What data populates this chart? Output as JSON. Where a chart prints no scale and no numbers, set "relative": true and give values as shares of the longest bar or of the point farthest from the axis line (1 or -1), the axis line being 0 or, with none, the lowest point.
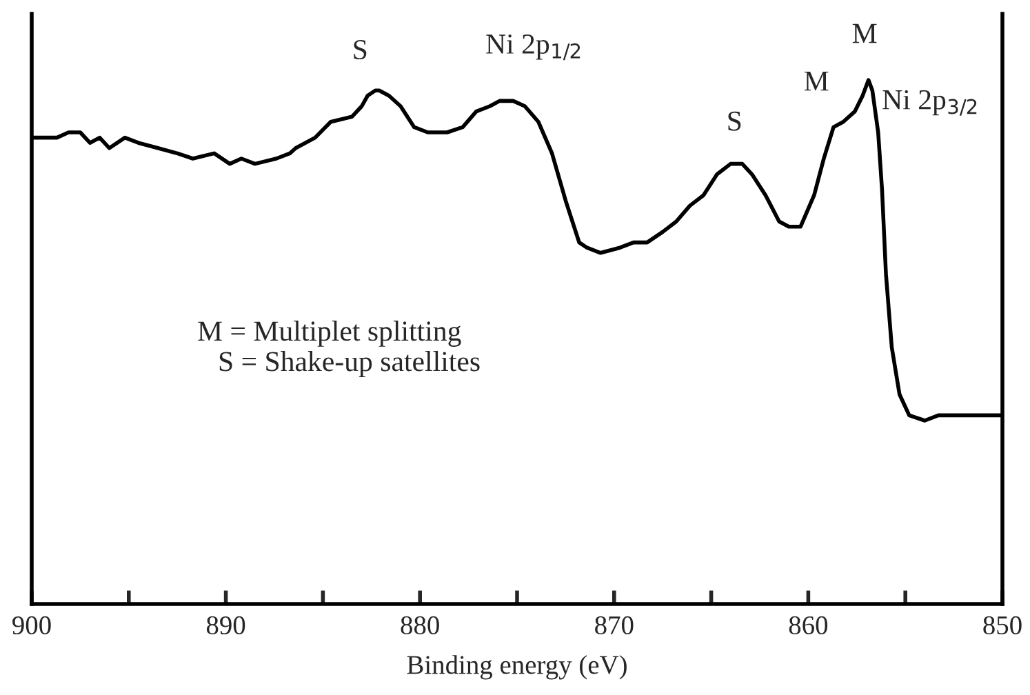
{
  "chart_data": {
    "type": "line",
    "relative": true,
    "xlabel": "Binding energy (eV)",
    "xlim": [
      900,
      850
    ],
    "xticks": [
      900,
      {
        "value": 895,
        "label": null
      },
      890,
      {
        "value": 885,
        "label": null
      },
      880,
      {
        "value": 875,
        "label": null
      },
      870,
      {
        "value": 865,
        "label": null
      },
      860,
      {
        "value": 855,
        "label": null
      },
      850
    ],
    "tick_labels": "x",
    "grid": false,
    "legend": false,
    "marker": "none",
    "line_style": "solid",
    "series": [
      {
        "color": "#000000",
        "x": [
          900.0,
          899.5,
          898.7,
          898.1,
          897.5,
          897.0,
          896.5,
          896.0,
          895.2,
          894.5,
          893.5,
          892.5,
          891.7,
          890.6,
          889.8,
          889.2,
          888.5,
          887.4,
          886.7,
          886.4,
          885.4,
          884.6,
          883.5,
          883.0,
          882.7,
          882.3,
          882.1,
          881.6,
          881.0,
          880.3,
          879.6,
          878.6,
          877.8,
          877.1,
          876.4,
          875.9,
          875.2,
          874.6,
          873.9,
          873.2,
          872.5,
          871.8,
          871.4,
          870.7,
          869.7,
          869.0,
          868.3,
          867.5,
          866.8,
          866.1,
          865.4,
          864.7,
          864.0,
          863.4,
          862.9,
          862.2,
          861.5,
          861.0,
          860.4,
          859.7,
          859.2,
          858.7,
          858.2,
          857.6,
          857.2,
          857.0,
          856.9,
          856.7,
          856.4,
          856.2,
          856.0,
          855.7,
          855.3,
          854.8,
          854.0,
          853.3,
          852.6,
          851.9,
          850.9,
          850.1
        ],
        "values": [
          0.89,
          0.89,
          0.89,
          0.9,
          0.9,
          0.88,
          0.89,
          0.87,
          0.89,
          0.88,
          0.87,
          0.86,
          0.85,
          0.86,
          0.84,
          0.85,
          0.84,
          0.85,
          0.86,
          0.87,
          0.89,
          0.92,
          0.93,
          0.95,
          0.97,
          0.98,
          0.98,
          0.97,
          0.95,
          0.91,
          0.9,
          0.9,
          0.91,
          0.94,
          0.95,
          0.96,
          0.96,
          0.95,
          0.92,
          0.86,
          0.77,
          0.69,
          0.68,
          0.67,
          0.68,
          0.69,
          0.69,
          0.71,
          0.73,
          0.76,
          0.78,
          0.82,
          0.84,
          0.84,
          0.82,
          0.78,
          0.73,
          0.72,
          0.72,
          0.78,
          0.85,
          0.91,
          0.92,
          0.94,
          0.97,
          0.99,
          1.0,
          0.98,
          0.9,
          0.79,
          0.63,
          0.49,
          0.4,
          0.36,
          0.35,
          0.36,
          0.36,
          0.36,
          0.36,
          0.36
        ]
      }
    ],
    "annotations": [
      {
        "text": "S",
        "x": 882.1,
        "y": 0.98
      },
      {
        "text": "Ni 2p$_{1/2}$",
        "x": 875.9,
        "y": 0.96
      },
      {
        "text": "S",
        "x": 864.0,
        "y": 0.84
      },
      {
        "text": "M",
        "x": 858.2,
        "y": 0.92
      },
      {
        "text": "M",
        "x": 856.9,
        "y": 1.0
      },
      {
        "text": "Ni 2p$_{3/2}$",
        "x": 856.9,
        "y": 1.0
      },
      "M = Multiplet splitting",
      "S = Shake-up satellites"
    ]
  }
}
